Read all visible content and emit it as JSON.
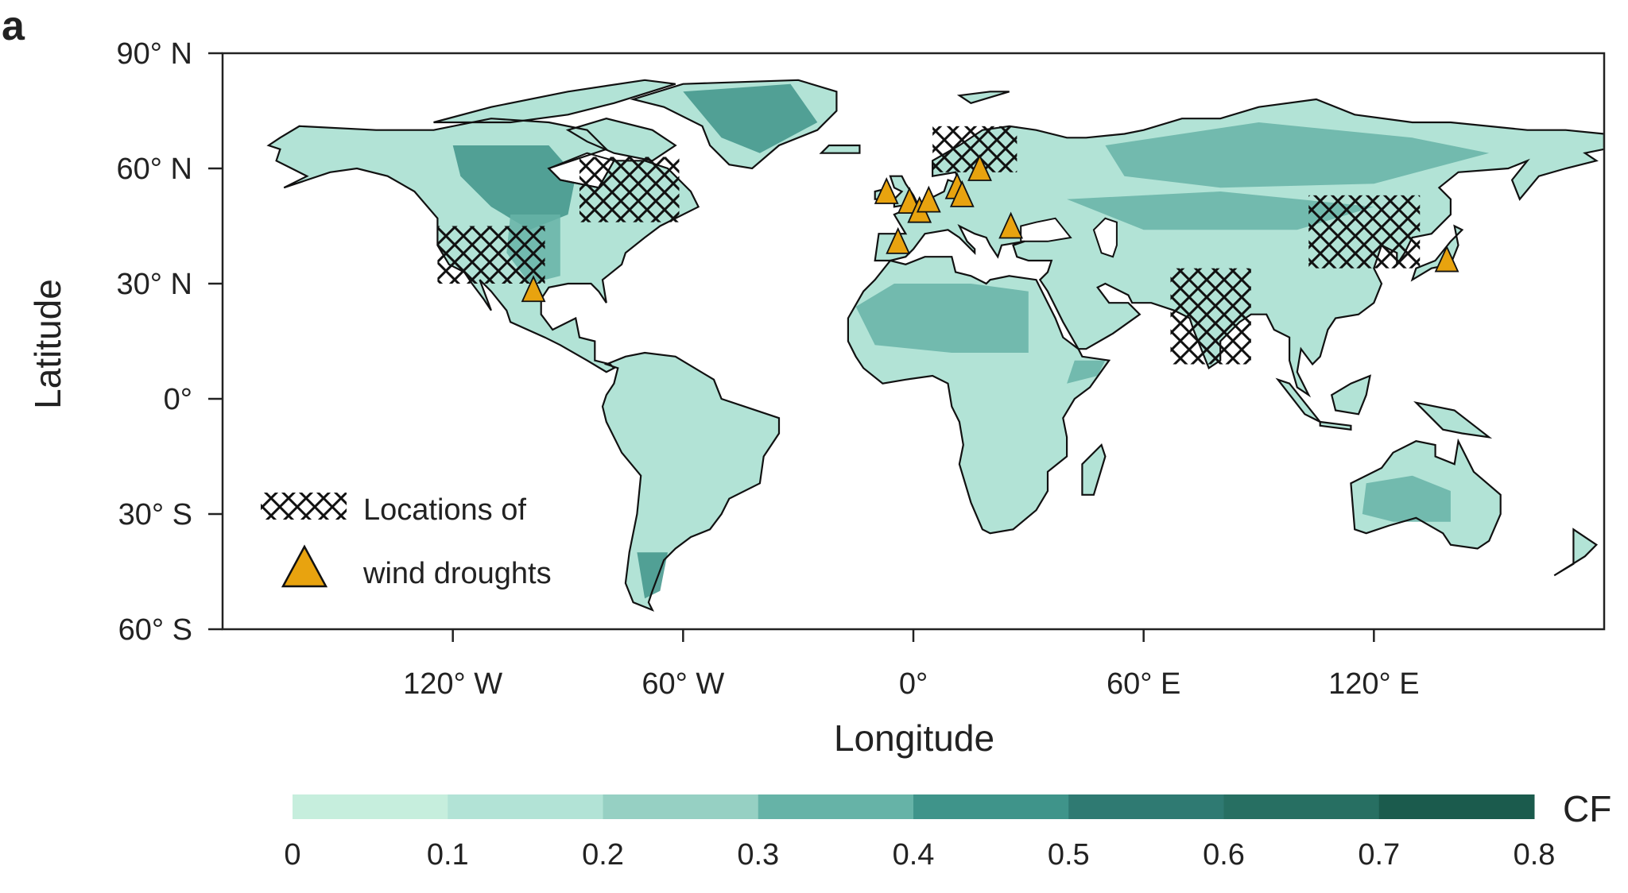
{
  "chart_data": {
    "type": "heatmap",
    "panel_label": "a",
    "xlabel": "Longitude",
    "ylabel": "Latitude",
    "xlim": [
      -180,
      180
    ],
    "ylim": [
      -60,
      90
    ],
    "xticks": [
      {
        "value": -120,
        "label": "120° W"
      },
      {
        "value": -60,
        "label": "60° W"
      },
      {
        "value": 0,
        "label": "0°"
      },
      {
        "value": 60,
        "label": "60° E"
      },
      {
        "value": 120,
        "label": "120° E"
      }
    ],
    "yticks": [
      {
        "value": 90,
        "label": "90° N"
      },
      {
        "value": 60,
        "label": "60° N"
      },
      {
        "value": 30,
        "label": "30° N"
      },
      {
        "value": 0,
        "label": "0°"
      },
      {
        "value": -30,
        "label": "30° S"
      },
      {
        "value": -60,
        "label": "60° S"
      }
    ],
    "colorbar": {
      "label": "CF",
      "ticks": [
        "0",
        "0.1",
        "0.2",
        "0.3",
        "0.4",
        "0.5",
        "0.6",
        "0.7",
        "0.8"
      ],
      "colors": [
        "#c6eedd",
        "#b2e3d6",
        "#96d0c3",
        "#66b3a7",
        "#3f948a",
        "#2f7a72",
        "#276f62",
        "#1b5b4d"
      ]
    },
    "legend": {
      "text_line1": "Locations of",
      "text_line2": "wind droughts",
      "placement": "bottom-left"
    },
    "marker_color": "#e8a30f",
    "triangle_locations": [
      {
        "lon": -99,
        "lat": 28
      },
      {
        "lon": -7,
        "lat": 53.5
      },
      {
        "lon": -1,
        "lat": 51
      },
      {
        "lon": 1.6,
        "lat": 48.6
      },
      {
        "lon": 4,
        "lat": 51.3
      },
      {
        "lon": -4,
        "lat": 40.5
      },
      {
        "lon": 11.4,
        "lat": 54.8
      },
      {
        "lon": 12.7,
        "lat": 52.7
      },
      {
        "lon": 17.3,
        "lat": 59.5
      },
      {
        "lon": 25.4,
        "lat": 44.5
      },
      {
        "lon": 139,
        "lat": 35.8
      }
    ],
    "hatched_regions": [
      {
        "lon": [
          -124,
          -96
        ],
        "lat": [
          30,
          45
        ]
      },
      {
        "lon": [
          -87,
          -61
        ],
        "lat": [
          46,
          63
        ]
      },
      {
        "lon": [
          5,
          27
        ],
        "lat": [
          59,
          71
        ]
      },
      {
        "lon": [
          67,
          88
        ],
        "lat": [
          9,
          34
        ]
      },
      {
        "lon": [
          103,
          132
        ],
        "lat": [
          34,
          53
        ]
      }
    ]
  }
}
